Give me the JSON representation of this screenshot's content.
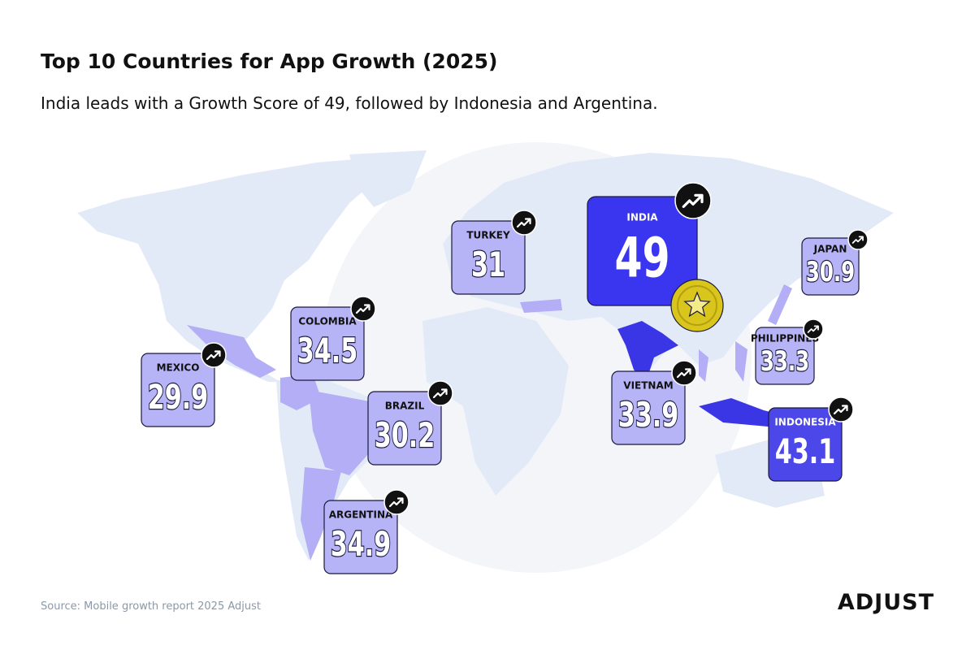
{
  "header": {
    "title": "Top 10 Countries for App Growth (2025)",
    "subtitle": "India leads with a Growth Score of 49, followed by Indonesia and Argentina."
  },
  "countries": [
    {
      "name": "INDIA",
      "score": 49
    },
    {
      "name": "INDONESIA",
      "score": 43.1
    },
    {
      "name": "ARGENTINA",
      "score": 34.9
    },
    {
      "name": "COLOMBIA",
      "score": 34.5
    },
    {
      "name": "VIETNAM",
      "score": 33.9
    },
    {
      "name": "PHILIPPINES",
      "score": 33.3
    },
    {
      "name": "TURKEY",
      "score": 31
    },
    {
      "name": "JAPAN",
      "score": 30.9
    },
    {
      "name": "BRAZIL",
      "score": 30.2
    },
    {
      "name": "MEXICO",
      "score": 29.9
    }
  ],
  "footer": {
    "source": "Source: Mobile growth report 2025 Adjust",
    "logo": "ADJUST"
  }
}
